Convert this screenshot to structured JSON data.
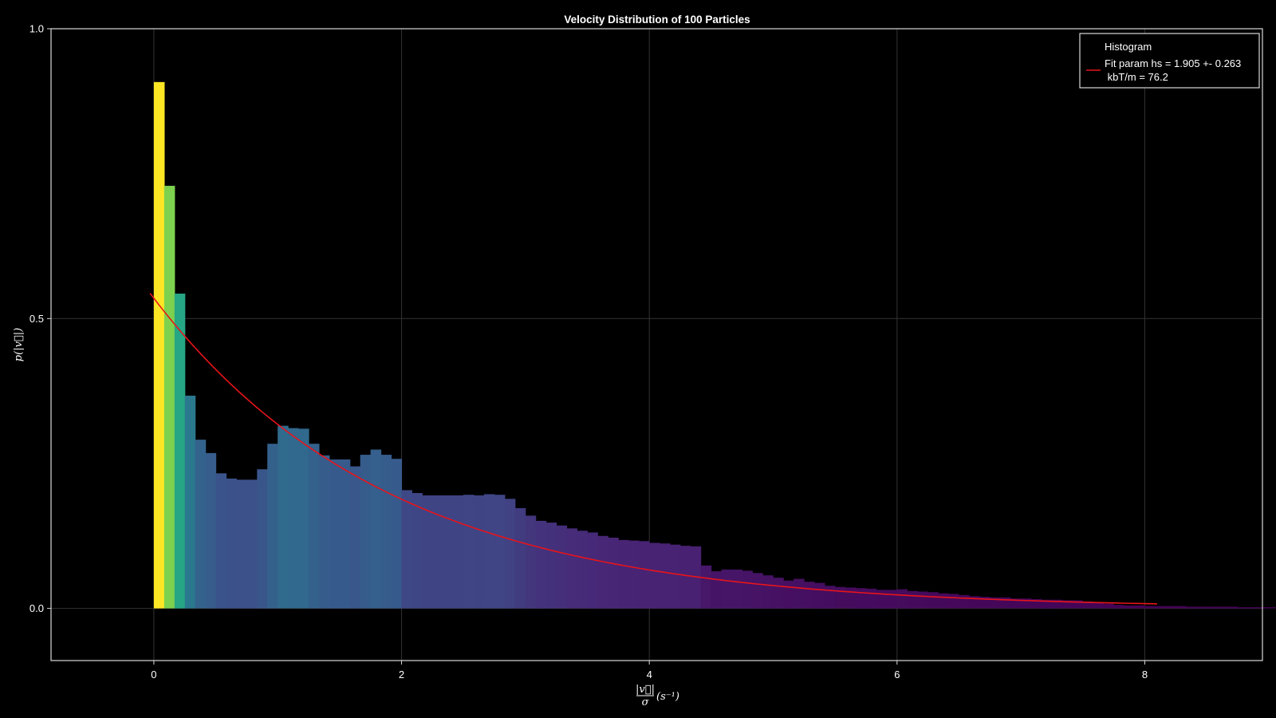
{
  "chart_data": {
    "type": "bar",
    "title": "Velocity Distribution of 100 Particles",
    "xlabel": "|v⃗|/σ (s⁻¹)",
    "xlabel_parts": {
      "numerator": "|v⃗|",
      "denominator": "σ",
      "unit": "(s⁻¹)"
    },
    "ylabel": "p(|v⃗|)",
    "xlim": [
      -0.83,
      8.95
    ],
    "ylim": [
      -0.09,
      1.0
    ],
    "x_ticks": [
      0,
      2,
      4,
      6,
      8
    ],
    "x_tick_labels": [
      "0",
      "2",
      "4",
      "6",
      "8"
    ],
    "y_ticks": [
      0.0,
      0.5,
      1.0
    ],
    "y_tick_labels": [
      "0.0",
      "0.5",
      "1.0"
    ],
    "grid": true,
    "bin_width": 0.0833,
    "histogram": {
      "name": "Histogram",
      "colormap": "viridis",
      "values": [
        0.908,
        0.729,
        0.543,
        0.367,
        0.291,
        0.268,
        0.233,
        0.224,
        0.222,
        0.222,
        0.24,
        0.284,
        0.315,
        0.311,
        0.31,
        0.284,
        0.264,
        0.257,
        0.257,
        0.245,
        0.265,
        0.274,
        0.265,
        0.258,
        0.204,
        0.199,
        0.195,
        0.195,
        0.195,
        0.195,
        0.196,
        0.195,
        0.197,
        0.196,
        0.189,
        0.173,
        0.16,
        0.151,
        0.148,
        0.143,
        0.138,
        0.134,
        0.131,
        0.125,
        0.122,
        0.118,
        0.117,
        0.116,
        0.113,
        0.112,
        0.11,
        0.108,
        0.107,
        0.074,
        0.064,
        0.067,
        0.067,
        0.065,
        0.061,
        0.057,
        0.053,
        0.048,
        0.051,
        0.046,
        0.044,
        0.039,
        0.037,
        0.036,
        0.035,
        0.034,
        0.032,
        0.032,
        0.033,
        0.03,
        0.029,
        0.028,
        0.026,
        0.025,
        0.023,
        0.021,
        0.02,
        0.019,
        0.019,
        0.017,
        0.017,
        0.016,
        0.015,
        0.015,
        0.014,
        0.014,
        0.012,
        0.011,
        0.008,
        0.006,
        0.005,
        0.005,
        0.004,
        0.004,
        0.004,
        0.004,
        0.003,
        0.003,
        0.003,
        0.003,
        0.003,
        0.002,
        0.002,
        0.002,
        0.002,
        0.002,
        0.002,
        0.002,
        0.001,
        0.001,
        0.001,
        0.001,
        0.001,
        0.001,
        0.001,
        0.001,
        0.001,
        0.001,
        0.001,
        0.001
      ]
    },
    "fit": {
      "name": "Fit param hs = 1.905 +- 0.263",
      "name_line2": " kbT/m = 76.2",
      "color": "#e8141a",
      "function": "A*exp(-x*kappa)",
      "A": 0.535,
      "kappa": 0.522,
      "x_range": [
        -0.03,
        8.1
      ]
    },
    "legend": {
      "position": "top-right"
    },
    "colors": {
      "background": "#000000",
      "frame": "#ffffff",
      "grid": "#333333"
    }
  }
}
